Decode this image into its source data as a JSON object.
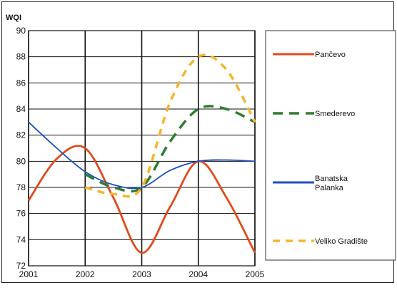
{
  "chart_data": {
    "type": "line",
    "ylabel": "WQI",
    "xlabel": "",
    "title": "",
    "xlim": [
      2001,
      2005
    ],
    "ylim": [
      72,
      90
    ],
    "x_ticks": [
      "2001",
      "2002",
      "2003",
      "2004",
      "2005"
    ],
    "y_ticks": [
      "72",
      "74",
      "76",
      "78",
      "80",
      "82",
      "84",
      "86",
      "88",
      "90"
    ],
    "grid": true,
    "legend_position": "right",
    "series": [
      {
        "name": "Pančevo",
        "color": "#e04a1c",
        "dash": "solid",
        "x": [
          2001,
          2001.5,
          2002,
          2002.5,
          2003,
          2003.5,
          2004,
          2004.5,
          2005
        ],
        "y": [
          77,
          80.2,
          81,
          77.2,
          73,
          76.5,
          80,
          77.2,
          73
        ]
      },
      {
        "name": "Smederevo",
        "color": "#2e7d32",
        "dash": "dash",
        "x": [
          2002,
          2002.5,
          2003,
          2003.5,
          2004,
          2004.5,
          2005
        ],
        "y": [
          79,
          78,
          78,
          81.5,
          84,
          84,
          83
        ]
      },
      {
        "name": "Banatska Palanka",
        "color": "#1f4fbf",
        "dash": "solid",
        "x": [
          2001,
          2001.5,
          2002,
          2002.5,
          2003,
          2003.5,
          2004,
          2004.5,
          2005
        ],
        "y": [
          83,
          81,
          79.2,
          78.2,
          78,
          79.3,
          80,
          80.1,
          80
        ]
      },
      {
        "name": "Veliko Gradište",
        "color": "#f5b52e",
        "dash": "dot",
        "x": [
          2002,
          2002.5,
          2003,
          2003.5,
          2004,
          2004.5,
          2005
        ],
        "y": [
          78,
          77.5,
          78,
          84.5,
          88,
          87,
          83
        ]
      }
    ]
  }
}
